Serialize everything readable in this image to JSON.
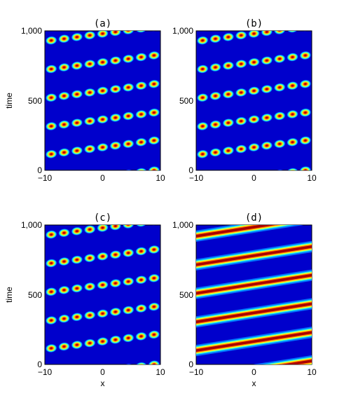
{
  "chart_data": [
    {
      "type": "heatmap",
      "title": "(a)",
      "xlabel": "",
      "ylabel": "time",
      "xlim": [
        -10,
        10
      ],
      "ylim": [
        0,
        1000
      ],
      "x_ticks": [
        "−10",
        "0",
        "10"
      ],
      "y_ticks": [
        "0",
        "500",
        "1,000"
      ],
      "pattern": "soliton-chain",
      "stripe_times_at_x_min": [
        -105,
        110,
        310,
        515,
        720,
        925
      ],
      "stripe_rise_over_x_range": 110,
      "spots_per_stripe": 9,
      "colormap": "jet"
    },
    {
      "type": "heatmap",
      "title": "(b)",
      "xlabel": "",
      "ylabel": "",
      "xlim": [
        -10,
        10
      ],
      "ylim": [
        0,
        1000
      ],
      "x_ticks": [
        "−10",
        "0",
        "10"
      ],
      "y_ticks": [
        "0",
        "500",
        "1,000"
      ],
      "pattern": "soliton-chain",
      "stripe_times_at_x_min": [
        -105,
        110,
        310,
        515,
        720,
        925
      ],
      "stripe_rise_over_x_range": 110,
      "spots_per_stripe": 9,
      "colormap": "jet"
    },
    {
      "type": "heatmap",
      "title": "(c)",
      "xlabel": "x",
      "ylabel": "time",
      "xlim": [
        -10,
        10
      ],
      "ylim": [
        0,
        1000
      ],
      "x_ticks": [
        "−10",
        "0",
        "10"
      ],
      "y_ticks": [
        "0",
        "500",
        "1,000"
      ],
      "pattern": "soliton-chain",
      "stripe_times_at_x_min": [
        -105,
        110,
        310,
        515,
        720,
        925
      ],
      "stripe_rise_over_x_range": 110,
      "spots_per_stripe": 9,
      "colormap": "jet"
    },
    {
      "type": "heatmap",
      "title": "(d)",
      "xlabel": "x",
      "ylabel": "",
      "xlim": [
        -10,
        10
      ],
      "ylim": [
        0,
        1000
      ],
      "x_ticks": [
        "−10",
        "0",
        "10"
      ],
      "y_ticks": [
        "0",
        "500",
        "1,000"
      ],
      "pattern": "continuous-band",
      "stripe_times_at_x_min": [
        -105,
        100,
        305,
        510,
        715,
        920
      ],
      "stripe_rise_over_x_range": 130,
      "colormap": "jet"
    }
  ]
}
